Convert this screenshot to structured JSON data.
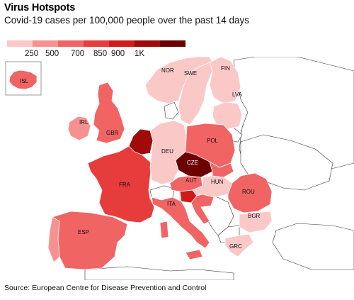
{
  "header": {
    "title": "Virus Hotspots",
    "subtitle": "Covid-19 cases per 100,000 people over the past 14 days"
  },
  "legend": {
    "colors": [
      "#fbc8c8",
      "#f79191",
      "#f06464",
      "#e63c3c",
      "#d21919",
      "#a00a0a",
      "#6b0000"
    ],
    "labels": [
      "250",
      "500",
      "700",
      "850",
      "900",
      "1K"
    ]
  },
  "map": {
    "countries": [
      {
        "code": "ISL",
        "label": "ISL",
        "color": "#f06464"
      },
      {
        "code": "NOR",
        "label": "NOR",
        "color": "#fbc8c8"
      },
      {
        "code": "SWE",
        "label": "SWE",
        "color": "#fbc8c8"
      },
      {
        "code": "FIN",
        "label": "FIN",
        "color": "#fbc8c8"
      },
      {
        "code": "LVA",
        "label": "LVA",
        "color": "#fbc8c8"
      },
      {
        "code": "IRL",
        "label": "IRL",
        "color": "#f79191"
      },
      {
        "code": "GBR",
        "label": "GBR",
        "color": "#f06464"
      },
      {
        "code": "DEU",
        "label": "DEU",
        "color": "#fbc8c8"
      },
      {
        "code": "POL",
        "label": "POL",
        "color": "#f06464"
      },
      {
        "code": "CZE",
        "label": "CZE",
        "color": "#6b0000"
      },
      {
        "code": "AUT",
        "label": "AUT",
        "color": "#f06464"
      },
      {
        "code": "HUN",
        "label": "HUN",
        "color": "#fbc8c8"
      },
      {
        "code": "FRA",
        "label": "FRA",
        "color": "#e63c3c"
      },
      {
        "code": "ITA",
        "label": "ITA",
        "color": "#f06464"
      },
      {
        "code": "ROU",
        "label": "ROU",
        "color": "#f06464"
      },
      {
        "code": "BGR",
        "label": "BGR",
        "color": "#fbc8c8"
      },
      {
        "code": "ESP",
        "label": "ESP",
        "color": "#f06464"
      },
      {
        "code": "GRC",
        "label": "GRC",
        "color": "#fbc8c8"
      }
    ]
  },
  "footer": {
    "source": "Source: European Centre for Disease Prevention and Control"
  }
}
